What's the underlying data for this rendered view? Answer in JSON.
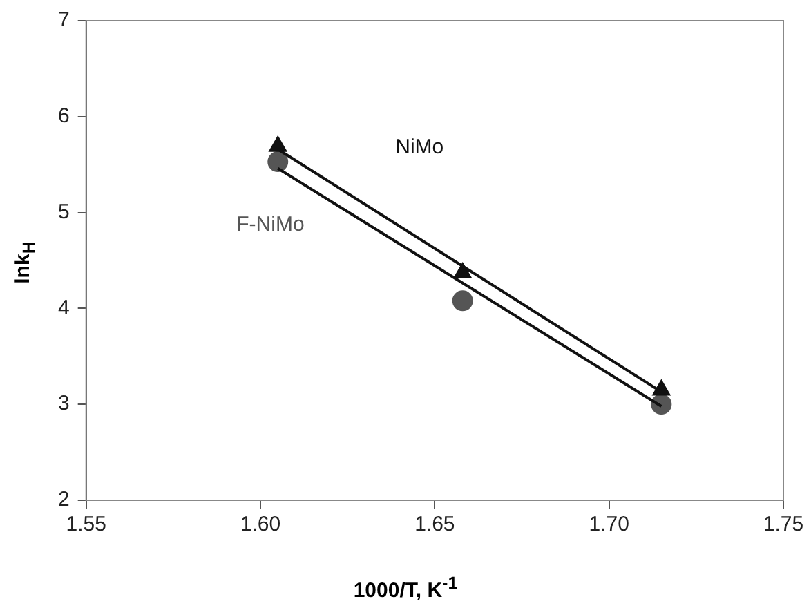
{
  "chart_data": {
    "type": "scatter",
    "xlabel": "1000/T, K$^{-1}$",
    "ylabel": "lnk$_{H}$",
    "xlim": [
      1.55,
      1.75
    ],
    "xticks": [
      1.55,
      {
        "value": 1.6,
        "label": "1.60"
      },
      1.65,
      {
        "value": 1.7,
        "label": "1.70"
      },
      1.75
    ],
    "ylim": [
      2,
      7
    ],
    "yticks": [
      2,
      3,
      4,
      5,
      6,
      7
    ],
    "grid": false,
    "legend": false,
    "series": [
      {
        "name": "NiMo",
        "type": "scatter",
        "marker": "triangle",
        "color": "#111111",
        "x": [
          1.605,
          1.658,
          1.715
        ],
        "values": [
          5.69,
          4.37,
          3.15
        ]
      },
      {
        "name": "F-NiMo",
        "type": "scatter",
        "marker": "circle",
        "color": "#555555",
        "x": [
          1.605,
          1.658,
          1.715
        ],
        "values": [
          5.53,
          4.08,
          3.0
        ]
      },
      {
        "type": "line",
        "marker": "none",
        "color": "#111111",
        "x": [
          1.605,
          1.715
        ],
        "values": [
          5.66,
          3.13
        ]
      },
      {
        "type": "line",
        "marker": "none",
        "color": "#111111",
        "x": [
          1.605,
          1.715
        ],
        "values": [
          5.46,
          2.98
        ]
      }
    ]
  }
}
